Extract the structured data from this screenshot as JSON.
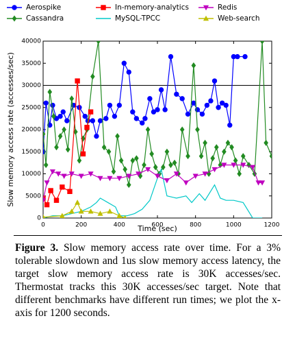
{
  "chart_data": {
    "type": "line",
    "xlabel": "Time (sec)",
    "ylabel": "Slow memory access rate (accesses/sec)",
    "xlim": [
      0,
      1200
    ],
    "xticks": [
      0,
      200,
      400,
      600,
      800,
      1000,
      1200
    ],
    "ylim": [
      0,
      40000
    ],
    "yticks": [
      0,
      5000,
      10000,
      15000,
      20000,
      25000,
      30000,
      35000,
      40000
    ],
    "hline": 30000,
    "series": [
      {
        "name": "Aerospike",
        "color": "#0000ff",
        "marker": "circle",
        "x": [
          0,
          15,
          35,
          50,
          70,
          90,
          105,
          125,
          160,
          190,
          220,
          235,
          260,
          280,
          300,
          330,
          350,
          375,
          400,
          425,
          450,
          470,
          490,
          520,
          535,
          560,
          580,
          600,
          620,
          640,
          670,
          700,
          730,
          760,
          790,
          810,
          835,
          860,
          880,
          900,
          920,
          940,
          960,
          980,
          1000,
          1020,
          1060
        ],
        "values": [
          15000,
          26000,
          21000,
          25500,
          22500,
          23000,
          24000,
          22000,
          25500,
          25000,
          23000,
          22000,
          22000,
          18500,
          22000,
          22500,
          25500,
          23000,
          25500,
          35000,
          33000,
          24000,
          22500,
          21500,
          22500,
          27000,
          24000,
          24500,
          29000,
          24500,
          36500,
          28000,
          27000,
          23500,
          26000,
          24500,
          23500,
          25500,
          26500,
          31000,
          25000,
          26000,
          25500,
          21000,
          36500,
          36500,
          36500
        ]
      },
      {
        "name": "Cassandra",
        "color": "#228b22",
        "marker": "diamond",
        "x": [
          0,
          15,
          35,
          55,
          70,
          90,
          110,
          130,
          150,
          170,
          190,
          210,
          230,
          260,
          290,
          320,
          345,
          370,
          390,
          410,
          430,
          450,
          470,
          490,
          510,
          530,
          550,
          570,
          590,
          610,
          630,
          650,
          670,
          690,
          710,
          730,
          760,
          790,
          810,
          830,
          850,
          870,
          890,
          910,
          930,
          950,
          970,
          990,
          1010,
          1030,
          1050,
          1080,
          1110,
          1150,
          1170,
          1200
        ],
        "values": [
          19000,
          12000,
          28500,
          23000,
          16000,
          18500,
          20000,
          15500,
          27000,
          19500,
          13000,
          18000,
          20000,
          32000,
          40000,
          16000,
          15000,
          10500,
          18500,
          13000,
          11000,
          7500,
          13000,
          13500,
          9500,
          12000,
          20000,
          14500,
          11500,
          10000,
          11500,
          15000,
          12000,
          12500,
          10000,
          20000,
          14000,
          34500,
          20000,
          14000,
          17000,
          10000,
          13500,
          16000,
          12000,
          15000,
          17000,
          16000,
          13000,
          10000,
          14000,
          12000,
          10000,
          40000,
          17000,
          14000
        ]
      },
      {
        "name": "In-memory-analytics",
        "color": "#ff0000",
        "marker": "square",
        "x": [
          0,
          20,
          40,
          70,
          100,
          140,
          180,
          210,
          230,
          250
        ],
        "values": [
          4500,
          3000,
          6200,
          4000,
          7000,
          6000,
          31000,
          14500,
          20500,
          24000
        ]
      },
      {
        "name": "MySQL-TPCC",
        "color": "#00c8c8",
        "x": [
          0,
          50,
          100,
          150,
          200,
          250,
          280,
          300,
          340,
          380,
          400,
          440,
          480,
          520,
          560,
          600,
          620,
          650,
          700,
          750,
          780,
          820,
          850,
          900,
          930,
          960,
          1000,
          1050,
          1100,
          1150
        ],
        "values": [
          0,
          500,
          500,
          1000,
          1500,
          2500,
          3500,
          4500,
          3500,
          2500,
          500,
          500,
          1000,
          2000,
          4000,
          9000,
          11000,
          5000,
          4500,
          5000,
          3500,
          5500,
          4000,
          7500,
          4500,
          4000,
          4000,
          3500,
          0,
          0
        ]
      },
      {
        "name": "Redis",
        "color": "#bf00bf",
        "marker": "triangle-down",
        "x": [
          0,
          20,
          50,
          80,
          110,
          150,
          200,
          250,
          300,
          350,
          400,
          450,
          500,
          550,
          600,
          650,
          700,
          750,
          800,
          850,
          900,
          950,
          1000,
          1050,
          1100,
          1130,
          1150
        ],
        "values": [
          4000,
          8000,
          10500,
          10000,
          9500,
          10000,
          9500,
          10000,
          9000,
          9000,
          9000,
          9500,
          10000,
          11000,
          9500,
          8500,
          10000,
          8000,
          9500,
          10000,
          11000,
          12000,
          12000,
          12000,
          11500,
          8000,
          8000
        ]
      },
      {
        "name": "Web-search",
        "color": "#bfbf00",
        "marker": "triangle-up",
        "x": [
          0,
          100,
          150,
          180,
          200,
          250,
          300,
          350,
          400,
          430
        ],
        "values": [
          200,
          500,
          1500,
          3500,
          1500,
          1500,
          1000,
          1500,
          500,
          0
        ]
      }
    ]
  },
  "caption": {
    "label": "Figure 3.",
    "text": "Slow memory access rate over time. For a 3% tolerable slowdown and 1us slow memory access latency, the target slow memory access rate is 30K accesses/sec. Thermostat tracks this 30K accesses/sec target. Note that different benchmarks have different run times; we plot the x-axis for 1200 seconds."
  }
}
